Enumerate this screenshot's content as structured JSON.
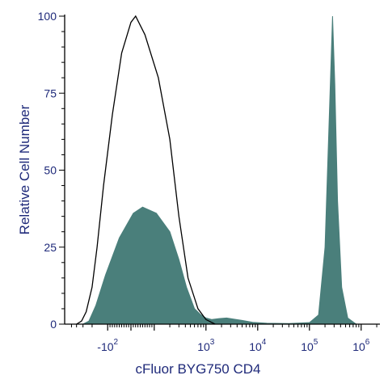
{
  "chart_data": {
    "type": "area",
    "xlabel": "cFluor BYG750 CD4",
    "ylabel": "Relative Cell Number",
    "x_scale": "biexponential",
    "ylim": [
      0,
      100
    ],
    "y_ticks": [
      {
        "value": 0,
        "label": "0"
      },
      {
        "value": 25,
        "label": "25"
      },
      {
        "value": 50,
        "label": "50"
      },
      {
        "value": 75,
        "label": "75"
      },
      {
        "value": 100,
        "label": "100"
      }
    ],
    "x_ticks": [
      {
        "value": -100,
        "label": "-10",
        "exp": "2"
      },
      {
        "value": 1000,
        "label": "10",
        "exp": "3"
      },
      {
        "value": 10000,
        "label": "10",
        "exp": "4"
      },
      {
        "value": 100000,
        "label": "10",
        "exp": "5"
      },
      {
        "value": 1000000,
        "label": "10",
        "exp": "6"
      }
    ],
    "grid": false,
    "colors": {
      "axis": "#000000",
      "text": "#1f2a7a",
      "stained_fill": "#4a7f7b",
      "control_line": "#000000"
    },
    "series": [
      {
        "style": "outline",
        "points": [
          [
            -400,
            0
          ],
          [
            -320,
            1
          ],
          [
            -260,
            4
          ],
          [
            -200,
            12
          ],
          [
            -160,
            25
          ],
          [
            -120,
            45
          ],
          [
            -80,
            68
          ],
          [
            -40,
            88
          ],
          [
            0,
            98
          ],
          [
            20,
            100
          ],
          [
            60,
            94
          ],
          [
            120,
            80
          ],
          [
            200,
            60
          ],
          [
            300,
            35
          ],
          [
            450,
            15
          ],
          [
            700,
            5
          ],
          [
            1000,
            1.5
          ],
          [
            1500,
            0
          ]
        ]
      },
      {
        "style": "filled",
        "points": [
          [
            -300,
            0
          ],
          [
            -230,
            1
          ],
          [
            -170,
            6
          ],
          [
            -110,
            16
          ],
          [
            -50,
            28
          ],
          [
            10,
            36
          ],
          [
            50,
            38
          ],
          [
            110,
            36
          ],
          [
            200,
            30
          ],
          [
            300,
            21
          ],
          [
            420,
            12
          ],
          [
            600,
            5
          ],
          [
            800,
            3
          ],
          [
            1000,
            2
          ],
          [
            1300,
            1.5
          ],
          [
            1800,
            1.8
          ],
          [
            2500,
            2
          ],
          [
            3500,
            1.6
          ],
          [
            5000,
            1.2
          ],
          [
            8000,
            0.6
          ],
          [
            15000,
            0.3
          ],
          [
            40000,
            0.2
          ],
          [
            100000,
            0.5
          ],
          [
            150000,
            3
          ],
          [
            200000,
            25
          ],
          [
            250000,
            75
          ],
          [
            280000,
            100
          ],
          [
            310000,
            78
          ],
          [
            350000,
            40
          ],
          [
            420000,
            12
          ],
          [
            550000,
            2
          ],
          [
            800000,
            0
          ]
        ]
      }
    ]
  }
}
